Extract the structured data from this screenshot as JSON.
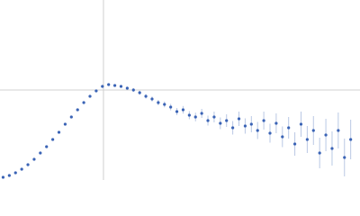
{
  "chart_data": {
    "type": "scatter",
    "color": "#3a63b5",
    "grid": true,
    "xlim": [
      0,
      3.48
    ],
    "ylim": [
      0,
      2
    ],
    "xticks": [
      1
    ],
    "yticks": [
      1
    ],
    "x": [
      0.03,
      0.09,
      0.15,
      0.21,
      0.27,
      0.33,
      0.39,
      0.45,
      0.51,
      0.57,
      0.63,
      0.69,
      0.75,
      0.81,
      0.87,
      0.93,
      0.99,
      1.05,
      1.11,
      1.17,
      1.23,
      1.29,
      1.35,
      1.41,
      1.47,
      1.53,
      1.59,
      1.65,
      1.71,
      1.77,
      1.83,
      1.89,
      1.95,
      2.01,
      2.07,
      2.13,
      2.19,
      2.25,
      2.31,
      2.37,
      2.43,
      2.49,
      2.55,
      2.61,
      2.67,
      2.73,
      2.79,
      2.85,
      2.91,
      2.97,
      3.03,
      3.09,
      3.15,
      3.21,
      3.27,
      3.33,
      3.39
    ],
    "values": [
      0.03,
      0.05,
      0.08,
      0.12,
      0.17,
      0.23,
      0.3,
      0.37,
      0.45,
      0.53,
      0.62,
      0.7,
      0.78,
      0.86,
      0.93,
      0.99,
      1.04,
      1.06,
      1.05,
      1.04,
      1.02,
      1.0,
      0.97,
      0.93,
      0.9,
      0.86,
      0.84,
      0.81,
      0.76,
      0.78,
      0.72,
      0.7,
      0.74,
      0.66,
      0.7,
      0.63,
      0.66,
      0.58,
      0.68,
      0.6,
      0.62,
      0.55,
      0.66,
      0.52,
      0.63,
      0.48,
      0.58,
      0.4,
      0.62,
      0.45,
      0.55,
      0.3,
      0.5,
      0.35,
      0.55,
      0.25,
      0.45
    ],
    "errors": [
      0.005,
      0.005,
      0.005,
      0.005,
      0.005,
      0.005,
      0.005,
      0.005,
      0.005,
      0.005,
      0.005,
      0.005,
      0.006,
      0.006,
      0.007,
      0.008,
      0.01,
      0.012,
      0.014,
      0.016,
      0.018,
      0.02,
      0.022,
      0.025,
      0.028,
      0.03,
      0.033,
      0.036,
      0.04,
      0.042,
      0.045,
      0.048,
      0.05,
      0.055,
      0.06,
      0.065,
      0.07,
      0.075,
      0.08,
      0.085,
      0.09,
      0.095,
      0.1,
      0.105,
      0.11,
      0.115,
      0.12,
      0.13,
      0.14,
      0.15,
      0.16,
      0.17,
      0.18,
      0.19,
      0.2,
      0.21,
      0.22
    ]
  }
}
